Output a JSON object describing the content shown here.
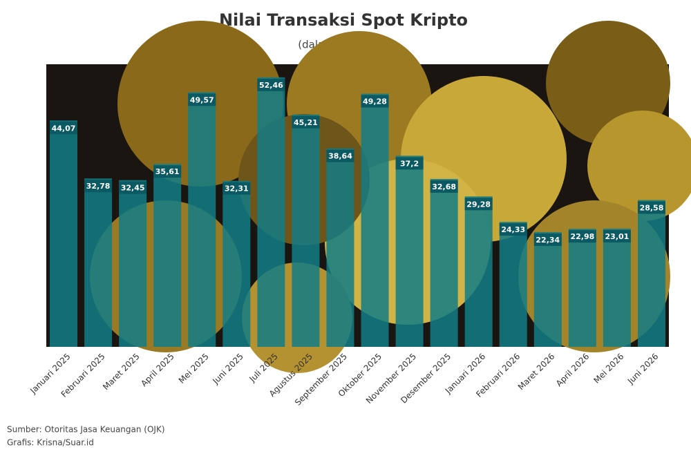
{
  "chart_data": {
    "type": "bar",
    "title": "Nilai Transaksi Spot Kripto",
    "subtitle": "(dalam Rp triliun)",
    "categories": [
      "Januari 2025",
      "Februari 2025",
      "Maret 2025",
      "April 2025",
      "Mei 2025",
      "Juni 2025",
      "Juli 2025",
      "Agustus 2025",
      "September 2025",
      "Oktober 2025",
      "November 2025",
      "Desember 2025",
      "Januari 2026",
      "Februari 2026",
      "Maret 2026",
      "April 2026",
      "Mei 2026",
      "Juni 2026"
    ],
    "values": [
      44.07,
      32.78,
      32.45,
      35.61,
      49.57,
      32.31,
      52.46,
      45.21,
      38.64,
      49.28,
      37.2,
      32.68,
      29.28,
      24.33,
      22.34,
      22.98,
      23.01,
      28.58
    ],
    "value_labels": [
      "44,07",
      "32,78",
      "32,45",
      "35,61",
      "49,57",
      "32,31",
      "52,46",
      "45,21",
      "38,64",
      "49,28",
      "37,2",
      "32,68",
      "29,28",
      "24,33",
      "22,34",
      "22,98",
      "23,01",
      "28,58"
    ],
    "color": "#127d86",
    "ylim": [
      0,
      55
    ],
    "notes": [
      "Sumber: Otoritas Jasa Keuangan (OJK)",
      "Grafis: Krisna/Suar.id"
    ]
  }
}
